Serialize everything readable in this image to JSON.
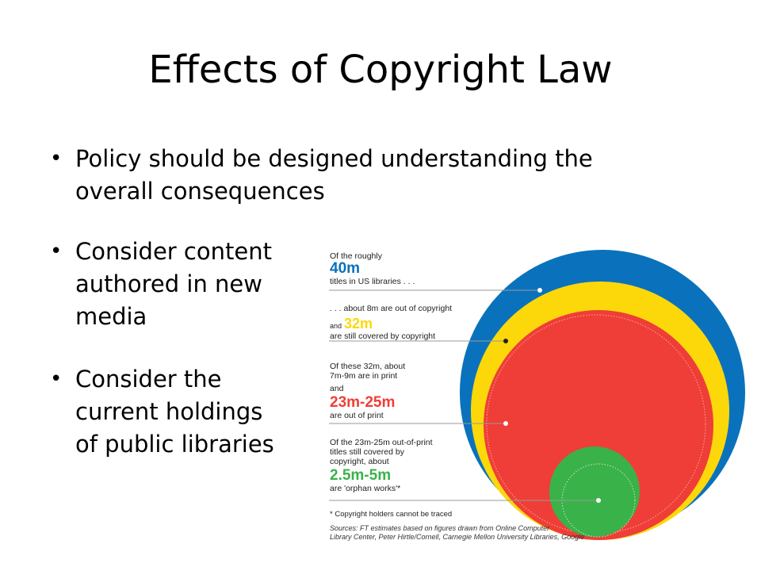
{
  "slide": {
    "title": "Effects of Copyright Law",
    "bullets": [
      {
        "lines": [
          "Policy should be designed understanding the",
          "overall consequences"
        ]
      },
      {
        "lines": [
          "Consider content",
          "authored in new",
          "media"
        ]
      },
      {
        "lines": [
          "Consider the",
          "current holdings",
          "of public libraries"
        ]
      }
    ]
  },
  "infographic": {
    "colors": {
      "blue": "#0a72bc",
      "yellow": "#fcd80b",
      "red": "#ef3e37",
      "green": "#3ab24a"
    },
    "annotations": [
      {
        "lines": [
          "Of the roughly"
        ],
        "figure": "40m",
        "figure_color": "#0a72bc",
        "after_lines": [
          "titles in US libraries . . ."
        ]
      },
      {
        "lines": [
          ". . . about 8m are out of copyright"
        ],
        "prefix": "and",
        "figure": "32m",
        "figure_color": "#fcd80b",
        "after_lines": [
          "are still covered by copyright"
        ]
      },
      {
        "lines": [
          "Of these 32m, about",
          "7m-9m are in print",
          "and"
        ],
        "figure": "23m-25m",
        "figure_color": "#ef3e37",
        "after_lines": [
          "are out of print"
        ]
      },
      {
        "lines": [
          "Of the 23m-25m out-of-print",
          "titles still covered by",
          "copyright, about"
        ],
        "figure": "2.5m-5m",
        "figure_color": "#3ab24a",
        "after_lines": [
          "are 'orphan works'*"
        ]
      }
    ],
    "footnote": "* Copyright holders cannot be traced",
    "sources": [
      "Sources: FT estimates based on figures drawn from Online Computer",
      "Library Center, Peter Hirtle/Cornell, Carnegie Mellon University Libraries, Google"
    ]
  }
}
